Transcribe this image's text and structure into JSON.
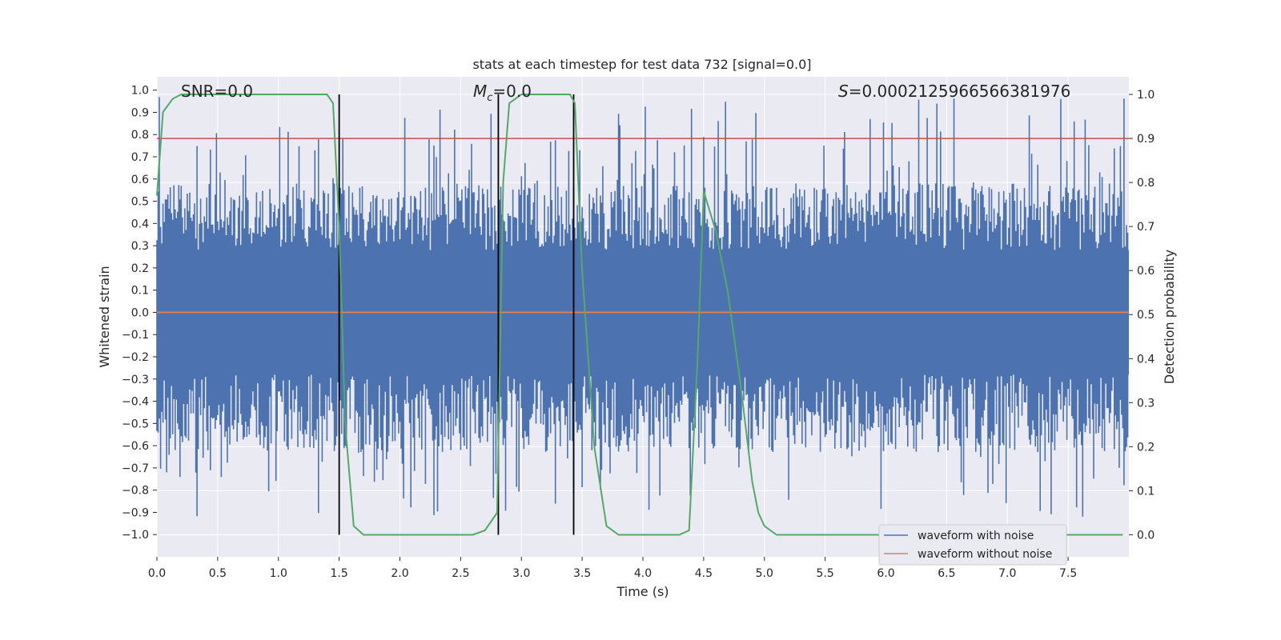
{
  "chart_data": {
    "type": "line",
    "title": "stats at each timestep for test data 732 [signal=0.0]",
    "xlabel": "Time (s)",
    "ylabel": "Whitened strain",
    "y2label": "Detection probability",
    "xlim": [
      0.0,
      8.0
    ],
    "ylim": [
      -1.1,
      1.06
    ],
    "y2lim": [
      -0.05,
      1.04
    ],
    "xticks": [
      "0.0",
      "0.5",
      "1.0",
      "1.5",
      "2.0",
      "2.5",
      "3.0",
      "3.5",
      "4.0",
      "4.5",
      "5.0",
      "5.5",
      "6.0",
      "6.5",
      "7.0",
      "7.5"
    ],
    "yticks": [
      "1.0",
      "0.9",
      "0.8",
      "0.7",
      "0.6",
      "0.5",
      "0.4",
      "0.3",
      "0.2",
      "0.1",
      "0.0",
      "−0.1",
      "−0.2",
      "−0.3",
      "−0.4",
      "−0.5",
      "−0.6",
      "−0.7",
      "−0.8",
      "−0.9",
      "−1.0"
    ],
    "y2ticks": [
      "1.0",
      "0.9",
      "0.8",
      "0.7",
      "0.6",
      "0.5",
      "0.4",
      "0.3",
      "0.2",
      "0.1",
      "0.0"
    ],
    "annotations": {
      "snr": "SNR=0.0",
      "mc_symbol": "M",
      "mc_sub": "c",
      "mc_value": "=0.0",
      "s_symbol": "S",
      "s_value": "=0.0002125966566381976"
    },
    "series": [
      {
        "name": "waveform with noise",
        "color": "#4c72b0",
        "axis": "left",
        "description": "dense noise trace",
        "samples": 800,
        "envelope_typical": 0.45,
        "spike_max": 0.97,
        "spike_min": -0.92
      },
      {
        "name": "waveform without noise",
        "color": "#dd8452",
        "axis": "left",
        "value": 0.0
      },
      {
        "name": "detection probability",
        "color": "#55a868",
        "axis": "right",
        "x": [
          0.0,
          0.05,
          0.13,
          0.2,
          1.4,
          1.45,
          1.5,
          1.55,
          1.62,
          1.7,
          2.6,
          2.7,
          2.8,
          2.85,
          2.9,
          3.0,
          3.4,
          3.44,
          3.5,
          3.6,
          3.7,
          3.8,
          4.3,
          4.38,
          4.45,
          4.5,
          4.6,
          4.7,
          4.8,
          4.9,
          4.95,
          5.0,
          5.1,
          7.95
        ],
        "y": [
          0.77,
          0.96,
          0.99,
          1.0,
          1.0,
          0.98,
          0.7,
          0.25,
          0.02,
          0.0,
          0.0,
          0.01,
          0.05,
          0.8,
          0.98,
          1.0,
          1.0,
          0.98,
          0.6,
          0.2,
          0.02,
          0.0,
          0.0,
          0.01,
          0.4,
          0.78,
          0.69,
          0.55,
          0.35,
          0.12,
          0.05,
          0.02,
          0.0,
          0.0
        ]
      }
    ],
    "threshold": {
      "color": "#c44e52",
      "value": 0.9,
      "axis": "right"
    },
    "vlines": [
      {
        "x": 1.5
      },
      {
        "x": 2.81
      },
      {
        "x": 3.43
      }
    ],
    "legend": {
      "placement": "lower-right",
      "entries": [
        {
          "label": "waveform with noise",
          "color": "#4c72b0"
        },
        {
          "label": "waveform without noise",
          "color": "#dd8452"
        }
      ]
    },
    "grid": true,
    "background": "#eaeaf2"
  }
}
